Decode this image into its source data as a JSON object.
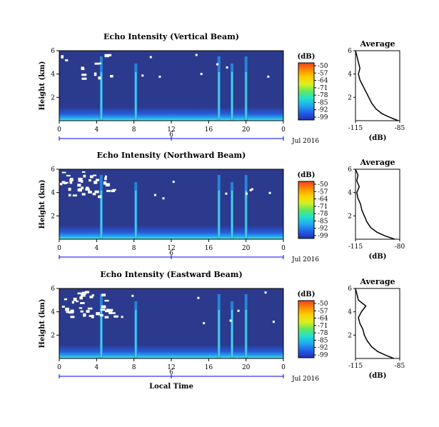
{
  "date_label": "Jul 2016",
  "xaxis_title": "Local Time",
  "colorbar": {
    "unit_label": "(dB)",
    "ticks": [
      "-50",
      "-57",
      "-64",
      "-71",
      "-78",
      "-85",
      "-92",
      "-99"
    ],
    "colors": [
      "#f04020",
      "#ff8c00",
      "#ffd000",
      "#d8f020",
      "#60e860",
      "#20e0d0",
      "#20a8f0",
      "#2060e8",
      "#2030b0"
    ]
  },
  "colors": {
    "background_field": "#2b3a8c",
    "axis": "#0000ff",
    "trace": "#000000"
  },
  "chart_data": [
    {
      "type": "heatmap",
      "title": "Echo Intensity (Vertical Beam)",
      "ylabel": "Height (km)",
      "xlabel": "",
      "x_range": [
        0,
        24
      ],
      "y_range": [
        0,
        6
      ],
      "x_ticks": [
        "0",
        "4",
        "8",
        "12",
        "16",
        "20",
        "0"
      ],
      "y_ticks": [
        "6",
        "4",
        "2"
      ],
      "secondary_ticks": [
        "6"
      ],
      "color_range": [
        -99,
        -50
      ],
      "bright_columns_hours": [
        4.5,
        8.2,
        17.1,
        18.5,
        20.0
      ],
      "profile": {
        "title": "Average",
        "xlabel": "(dB)",
        "x_ticks": [
          "-115",
          "-85"
        ],
        "x_range": [
          -115,
          -85
        ],
        "y_ticks": [
          "6",
          "4",
          "2"
        ],
        "height_km": [
          0.0,
          0.3,
          0.6,
          1.0,
          1.5,
          2.0,
          2.5,
          3.0,
          3.5,
          4.0,
          4.5,
          5.0,
          5.5,
          6.0
        ],
        "values_db": [
          -86,
          -92,
          -97,
          -101,
          -104,
          -106,
          -108,
          -110,
          -112,
          -113,
          -112,
          -113,
          -114,
          -115
        ]
      }
    },
    {
      "type": "heatmap",
      "title": "Echo Intensity (Northward Beam)",
      "ylabel": "Height (km)",
      "xlabel": "",
      "x_range": [
        0,
        24
      ],
      "y_range": [
        0,
        6
      ],
      "x_ticks": [
        "0",
        "4",
        "8",
        "12",
        "16",
        "20",
        "0"
      ],
      "y_ticks": [
        "6",
        "4",
        "2"
      ],
      "secondary_ticks": [
        "6"
      ],
      "color_range": [
        -99,
        -50
      ],
      "bright_columns_hours": [
        4.5,
        8.2,
        17.1,
        18.5,
        20.0
      ],
      "profile": {
        "title": "Average",
        "xlabel": "(dB)",
        "x_ticks": [
          "-115",
          "-80"
        ],
        "x_range": [
          -115,
          -80
        ],
        "y_ticks": [
          "6",
          "4",
          "2"
        ],
        "height_km": [
          0.0,
          0.3,
          0.6,
          1.0,
          1.5,
          2.0,
          2.5,
          3.0,
          3.5,
          4.0,
          4.5,
          5.0,
          5.5,
          6.0
        ],
        "values_db": [
          -84,
          -92,
          -98,
          -103,
          -106,
          -108,
          -110,
          -111,
          -113,
          -114,
          -112,
          -114,
          -113,
          -115
        ]
      }
    },
    {
      "type": "heatmap",
      "title": "Echo Intensity (Eastward Beam)",
      "ylabel": "Height (km)",
      "xlabel": "Local Time",
      "x_range": [
        0,
        24
      ],
      "y_range": [
        0,
        6
      ],
      "x_ticks": [
        "0",
        "4",
        "8",
        "12",
        "16",
        "20",
        "0"
      ],
      "y_ticks": [
        "6",
        "4",
        "2"
      ],
      "secondary_ticks": [
        "6"
      ],
      "color_range": [
        -99,
        -50
      ],
      "bright_columns_hours": [
        4.5,
        8.2,
        17.1,
        18.5,
        20.0
      ],
      "profile": {
        "title": "Average",
        "xlabel": "(dB)",
        "x_ticks": [
          "-115",
          "-85"
        ],
        "x_range": [
          -115,
          -85
        ],
        "y_ticks": [
          "6",
          "4",
          "2"
        ],
        "height_km": [
          0.0,
          0.3,
          0.6,
          1.0,
          1.5,
          2.0,
          2.5,
          3.0,
          3.5,
          4.0,
          4.5,
          5.0,
          5.5,
          6.0
        ],
        "values_db": [
          -89,
          -95,
          -100,
          -104,
          -107,
          -109,
          -110,
          -112,
          -113,
          -111,
          -108,
          -113,
          -114,
          -115
        ]
      }
    }
  ]
}
